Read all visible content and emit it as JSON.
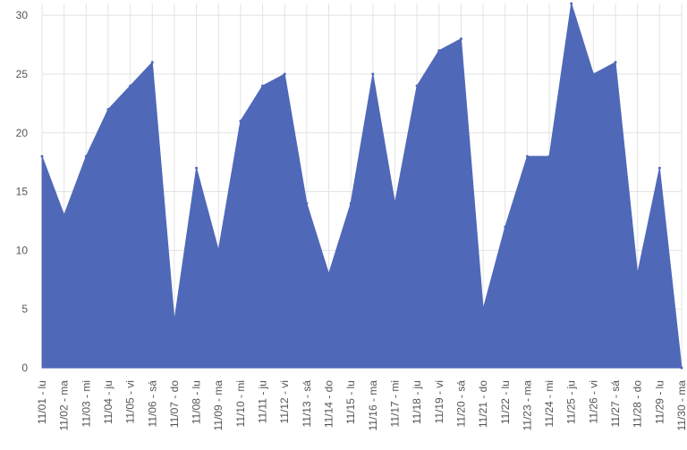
{
  "chart_data": {
    "type": "area",
    "categories": [
      "11/01 - lu",
      "11/02 - ma",
      "11/03 - mi",
      "11/04 - ju",
      "11/05 - vi",
      "11/06 - sá",
      "11/07 - do",
      "11/08 - lu",
      "11/09 - ma",
      "11/10 - mi",
      "11/11 - ju",
      "11/12 - vi",
      "11/13 - sá",
      "11/14 - do",
      "11/15 - lu",
      "11/16 - ma",
      "11/17 - mi",
      "11/18 - ju",
      "11/19 - vi",
      "11/20 - sá",
      "11/21 - do",
      "11/22 - lu",
      "11/23 - ma",
      "11/24 - mi",
      "11/25 - ju",
      "11/26 - vi",
      "11/27 - sá",
      "11/28 - do",
      "11/29 - lu",
      "11/30 - ma"
    ],
    "series": [
      {
        "values": [
          18,
          13,
          18,
          22,
          24,
          26,
          4,
          17,
          10,
          21,
          24,
          25,
          14,
          8,
          14,
          25,
          14,
          24,
          27,
          28,
          5,
          12,
          18,
          18,
          31,
          25,
          26,
          8,
          17,
          0
        ]
      }
    ],
    "ylim": [
      0,
      31
    ],
    "yticks": [
      0,
      5,
      10,
      15,
      20,
      25,
      30
    ],
    "grid": true,
    "legend": "none",
    "colors": {
      "fill": "#4f68b8",
      "grid": "#e3e3e3"
    }
  }
}
